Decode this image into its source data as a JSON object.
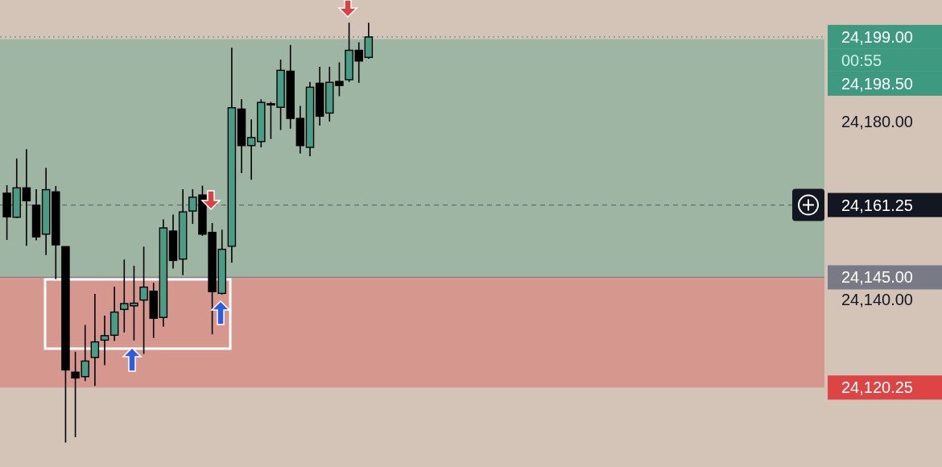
{
  "chart_data": {
    "type": "candlestick",
    "tick_labels": "y",
    "categories": [
      null,
      null,
      null,
      null,
      null,
      null,
      null,
      null,
      null,
      null,
      null,
      null,
      null,
      null,
      null,
      null,
      null,
      null,
      null,
      null,
      null,
      null,
      null,
      null,
      null,
      null,
      null,
      null,
      null,
      null,
      null,
      null,
      null,
      null,
      null,
      null,
      null,
      null,
      null,
      null,
      null,
      null,
      null,
      null,
      null,
      null,
      null,
      null,
      null,
      null,
      null,
      null,
      null,
      null,
      null,
      null,
      null,
      null,
      null,
      null,
      null,
      null,
      null,
      null,
      null,
      null,
      null,
      null,
      null,
      null,
      null,
      null,
      null,
      null,
      null,
      null,
      null,
      null,
      null,
      null,
      null,
      null,
      null,
      null
    ],
    "ohlc": [
      [
        24163.9,
        24165.7,
        24153.4,
        24158.6
      ],
      [
        24158.5,
        24171.7,
        24158.3,
        24165.1
      ],
      [
        24165.1,
        24173.8,
        24152.1,
        24162.2
      ],
      [
        24161.2,
        24164.8,
        24153.3,
        24154.1
      ],
      [
        24154.7,
        24169.6,
        24150.0,
        24164.7
      ],
      [
        24164.2,
        24165.5,
        24144.6,
        24152.3
      ],
      [
        24151.9,
        24151.9,
        24107.9,
        24124.2
      ],
      [
        24123.7,
        24128.3,
        24109.1,
        24122.4
      ],
      [
        24122.7,
        24134.3,
        24121.7,
        24126.2
      ],
      [
        24127.0,
        24141.3,
        24120.6,
        24130.5
      ],
      [
        24130.9,
        24136.4,
        24125.3,
        24131.9
      ],
      [
        24132.0,
        24142.9,
        24130.7,
        24137.2
      ],
      [
        24137.8,
        24149.0,
        24132.6,
        24139.1
      ],
      [
        24138.6,
        24147.6,
        24130.8,
        24139.2
      ],
      [
        24139.9,
        24151.9,
        24127.8,
        24142.8
      ],
      [
        24141.9,
        24143.8,
        24131.4,
        24135.8
      ],
      [
        24136.0,
        24158.0,
        24133.9,
        24156.1
      ],
      [
        24155.4,
        24159.1,
        24147.0,
        24148.8
      ],
      [
        24149.1,
        24164.8,
        24145.5,
        24159.7
      ],
      [
        24159.9,
        24164.8,
        24157.0,
        24163.0
      ],
      [
        24163.5,
        24165.6,
        24154.3,
        24154.7
      ],
      [
        24155.1,
        24157.2,
        24132.2,
        24141.8
      ],
      [
        24141.4,
        24155.7,
        24141.1,
        24151.3
      ],
      [
        24152.0,
        24196.6,
        24148.3,
        24183.1
      ],
      [
        24182.8,
        24185.0,
        24168.4,
        24174.6
      ],
      [
        24174.6,
        24180.5,
        24166.9,
        24176.4
      ],
      [
        24175.5,
        24185.0,
        24174.2,
        24184.3
      ],
      [
        24183.8,
        24184.4,
        24176.1,
        24184.0
      ],
      [
        24183.2,
        24193.9,
        24178.1,
        24191.5
      ],
      [
        24191.3,
        24197.2,
        24178.4,
        24180.7
      ],
      [
        24180.7,
        24183.5,
        24172.8,
        24174.6
      ],
      [
        24174.2,
        24188.9,
        24172.2,
        24187.7
      ],
      [
        24188.6,
        24192.3,
        24179.1,
        24181.2
      ],
      [
        24181.9,
        24192.3,
        24180.0,
        24188.8
      ],
      [
        24189.0,
        24193.3,
        24185.7,
        24188.1
      ],
      [
        24189.4,
        24202.2,
        24188.9,
        24196.0
      ],
      [
        24196.0,
        24197.8,
        24188.7,
        24193.6
      ],
      [
        24194.4,
        24202.2,
        24194.1,
        24199.0
      ],
      null,
      null,
      null,
      null,
      null,
      null,
      null,
      null,
      null,
      null,
      null,
      null,
      null,
      null,
      null,
      null,
      null,
      null,
      null,
      null,
      null,
      null,
      null,
      null,
      null,
      null,
      null,
      null,
      null,
      null,
      null,
      null,
      null,
      null,
      null,
      null,
      null,
      null,
      null,
      null,
      null,
      null,
      null,
      null,
      null,
      null
    ],
    "ylim": [
      24102.4,
      24207.3
    ],
    "yticks": [
      {
        "value": 24140,
        "label": "24,140.00"
      },
      {
        "value": 24180,
        "label": "24,180.00"
      }
    ],
    "bands": [
      {
        "axis": "y",
        "from": 24145,
        "to": 24198.5,
        "label": "24,198.50",
        "color": "#3d9a80"
      },
      {
        "axis": "y",
        "from": 24120.25,
        "to": 24145,
        "label": "24,120.25",
        "color": "#dd4545"
      }
    ],
    "ref_lines": [
      {
        "axis": "y",
        "value": 24199,
        "label": "24,199.00",
        "color": "#3d9a80",
        "line_style": "dotted"
      },
      {
        "axis": "y",
        "value": 24161.25,
        "label": "24,161.25",
        "color": "#131722",
        "line_style": "dashed"
      },
      {
        "axis": "y",
        "value": 24145,
        "label": "24,145.00",
        "color": "#787b86",
        "line_style": "solid"
      }
    ],
    "annotations": [
      "00:55"
    ]
  }
}
